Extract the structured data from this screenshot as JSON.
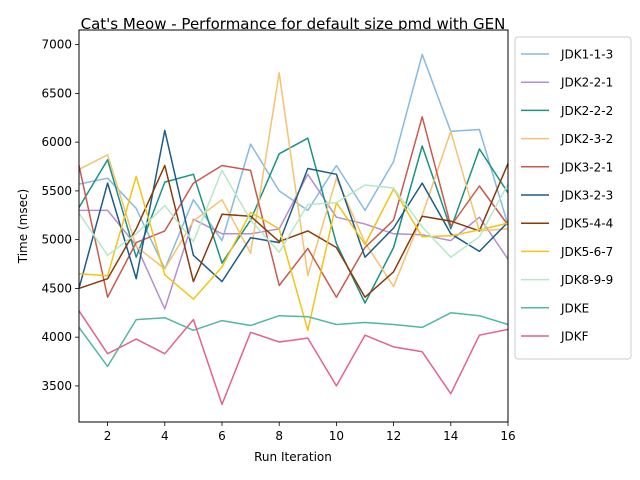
{
  "chart_data": {
    "type": "line",
    "title": "Cat's Meow - Performance for default size pmd with GEN",
    "xlabel": "Run Iteration",
    "ylabel": "Time (msec)",
    "xlim": [
      1,
      16
    ],
    "ylim": [
      3130,
      7150
    ],
    "xticks": [
      2,
      4,
      6,
      8,
      10,
      12,
      14,
      16
    ],
    "yticks": [
      3500,
      4000,
      4500,
      5000,
      5500,
      6000,
      6500,
      7000
    ],
    "grid": false,
    "legend_position": "outside-right",
    "x": [
      1,
      2,
      3,
      4,
      5,
      6,
      7,
      8,
      9,
      10,
      11,
      12,
      13,
      14,
      15,
      16
    ],
    "series": [
      {
        "name": "JDK1-1-3",
        "color": "#86bbe0",
        "values": [
          5570,
          5630,
          5320,
          4700,
          5410,
          4990,
          5980,
          5500,
          5300,
          5760,
          5300,
          5800,
          6900,
          6110,
          6130,
          5150
        ]
      },
      {
        "name": "JDK2-2-1",
        "color": "#b38fd3",
        "values": [
          5300,
          5300,
          4940,
          4290,
          5210,
          5060,
          5060,
          5110,
          5670,
          5230,
          5160,
          5060,
          5050,
          4990,
          5230,
          4800
        ]
      },
      {
        "name": "JDK2-2-2",
        "color": "#1b9282",
        "values": [
          5330,
          5820,
          4820,
          5590,
          5670,
          4760,
          5200,
          5880,
          6040,
          4960,
          4350,
          4920,
          5960,
          5110,
          5930,
          5480
        ]
      },
      {
        "name": "JDK2-3-2",
        "color": "#f4c271",
        "values": [
          5720,
          5870,
          4930,
          4700,
          5190,
          5410,
          4860,
          6710,
          4630,
          5630,
          4970,
          4520,
          5250,
          6110,
          5090,
          5110
        ]
      },
      {
        "name": "JDK3-2-1",
        "color": "#c75b4e",
        "values": [
          5760,
          4410,
          4970,
          5090,
          5580,
          5760,
          5710,
          4530,
          4910,
          4410,
          4920,
          5200,
          6260,
          5140,
          5550,
          5150
        ]
      },
      {
        "name": "JDK3-2-3",
        "color": "#1d5b89",
        "values": [
          4500,
          5580,
          4600,
          6120,
          4840,
          4570,
          5020,
          4970,
          5730,
          5670,
          4820,
          5120,
          5580,
          5060,
          4880,
          5180
        ]
      },
      {
        "name": "JDK5-4-4",
        "color": "#8a3a0a",
        "values": [
          4500,
          4600,
          5110,
          5760,
          4570,
          5260,
          5240,
          4980,
          5090,
          4920,
          4410,
          4670,
          5240,
          5190,
          5090,
          5780
        ]
      },
      {
        "name": "JDK5-6-7",
        "color": "#f2c418",
        "values": [
          4650,
          4630,
          5650,
          4640,
          4390,
          4720,
          5280,
          5110,
          4070,
          5380,
          4950,
          5520,
          5030,
          5040,
          5100,
          5170
        ]
      },
      {
        "name": "JDK8-9-9",
        "color": "#b7e8c8",
        "values": [
          5270,
          4840,
          5060,
          5350,
          4980,
          5710,
          5200,
          4870,
          5360,
          5380,
          5560,
          5530,
          5130,
          4820,
          5030,
          5570
        ]
      },
      {
        "name": "JDKE",
        "color": "#52b8a2",
        "values": [
          4100,
          3700,
          4180,
          4200,
          4070,
          4170,
          4120,
          4220,
          4210,
          4130,
          4150,
          4130,
          4100,
          4250,
          4220,
          4130
        ]
      },
      {
        "name": "JDKF",
        "color": "#e36488",
        "values": [
          4270,
          3830,
          3980,
          3830,
          4180,
          3310,
          4050,
          3950,
          3990,
          3500,
          4020,
          3900,
          3850,
          3420,
          4020,
          4080
        ]
      }
    ]
  }
}
